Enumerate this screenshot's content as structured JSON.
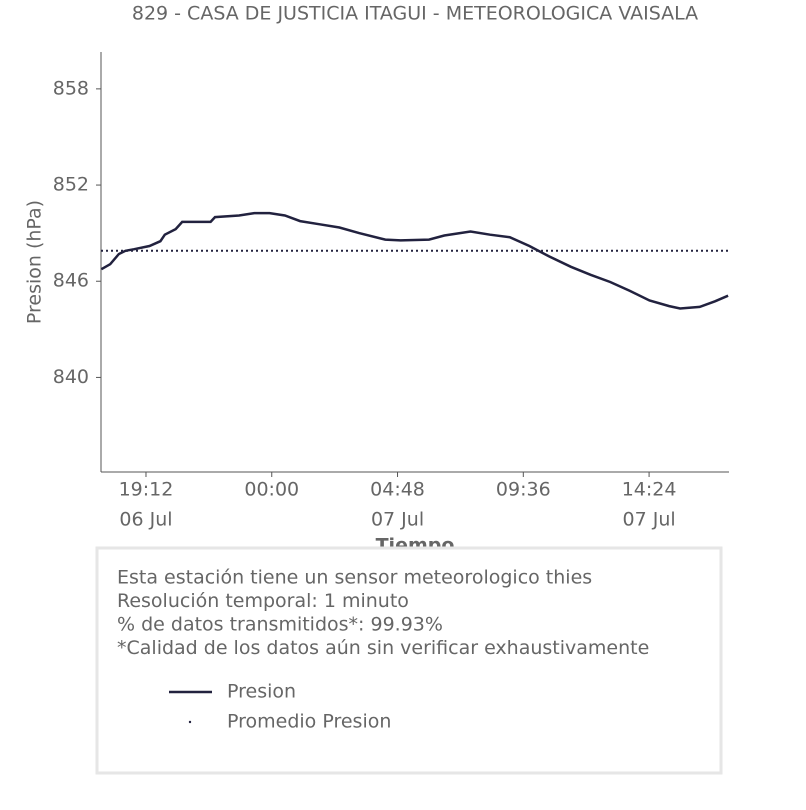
{
  "chart_data": {
    "type": "line",
    "title": "829 - CASA DE JUSTICIA ITAGUI - METEOROLOGICA VAISALA",
    "y_label": "Presion (hPa)",
    "x_label": "Tiempo",
    "x": [
      "06 Jul 17:30",
      "06 Jul 17:50",
      "06 Jul 18:10",
      "06 Jul 18:25",
      "06 Jul 18:45",
      "06 Jul 19:20",
      "06 Jul 19:45",
      "06 Jul 19:55",
      "06 Jul 20:20",
      "06 Jul 20:35",
      "06 Jul 21:40",
      "06 Jul 21:50",
      "06 Jul 22:45",
      "06 Jul 23:20",
      "06 Jul 23:55",
      "07 Jul 00:30",
      "07 Jul 01:05",
      "07 Jul 01:50",
      "07 Jul 02:35",
      "07 Jul 03:20",
      "07 Jul 04:20",
      "07 Jul 04:55",
      "07 Jul 06:00",
      "07 Jul 06:35",
      "07 Jul 07:35",
      "07 Jul 08:20",
      "07 Jul 09:05",
      "07 Jul 09:50",
      "07 Jul 10:35",
      "07 Jul 11:25",
      "07 Jul 12:10",
      "07 Jul 12:55",
      "07 Jul 13:40",
      "07 Jul 14:25",
      "07 Jul 15:10",
      "07 Jul 15:35",
      "07 Jul 16:20",
      "07 Jul 16:55",
      "07 Jul 17:25"
    ],
    "series": [
      {
        "name": "Presion",
        "color": "#22223f",
        "values": [
          846.75,
          847.06,
          847.7,
          847.9,
          848.0,
          848.2,
          848.5,
          848.9,
          849.25,
          849.7,
          849.7,
          850.0,
          850.1,
          850.25,
          850.25,
          850.1,
          849.75,
          849.55,
          849.35,
          849.0,
          848.6,
          848.55,
          848.6,
          848.85,
          849.1,
          848.9,
          848.75,
          848.2,
          847.55,
          846.9,
          846.4,
          845.95,
          845.4,
          844.8,
          844.45,
          844.3,
          844.4,
          844.75,
          845.1
        ]
      }
    ],
    "mean": {
      "name": "Promedio Presion",
      "value": 847.9,
      "color": "#22223f"
    },
    "xlim": [
      "06 Jul 17:29",
      "07 Jul 17:27"
    ],
    "xticks": [
      {
        "value": "06 Jul 19:12",
        "label": "19:12",
        "date": "06 Jul"
      },
      {
        "value": "07 Jul 00:00",
        "label": "00:00"
      },
      {
        "value": "07 Jul 04:48",
        "label": "04:48",
        "date": "07 Jul"
      },
      {
        "value": "07 Jul 09:36",
        "label": "09:36"
      },
      {
        "value": "07 Jul 14:24",
        "label": "14:24",
        "date": "07 Jul"
      }
    ],
    "ylim": [
      834.1,
      860.3
    ],
    "yticks": [
      840,
      846,
      852,
      858
    ],
    "notes": [
      "Esta estación tiene un sensor meteorologico thies",
      "Resolución temporal: 1 minuto",
      "% de datos transmitidos*: 99.93%",
      "*Calidad de los datos aún sin verificar exhaustivamente"
    ]
  }
}
